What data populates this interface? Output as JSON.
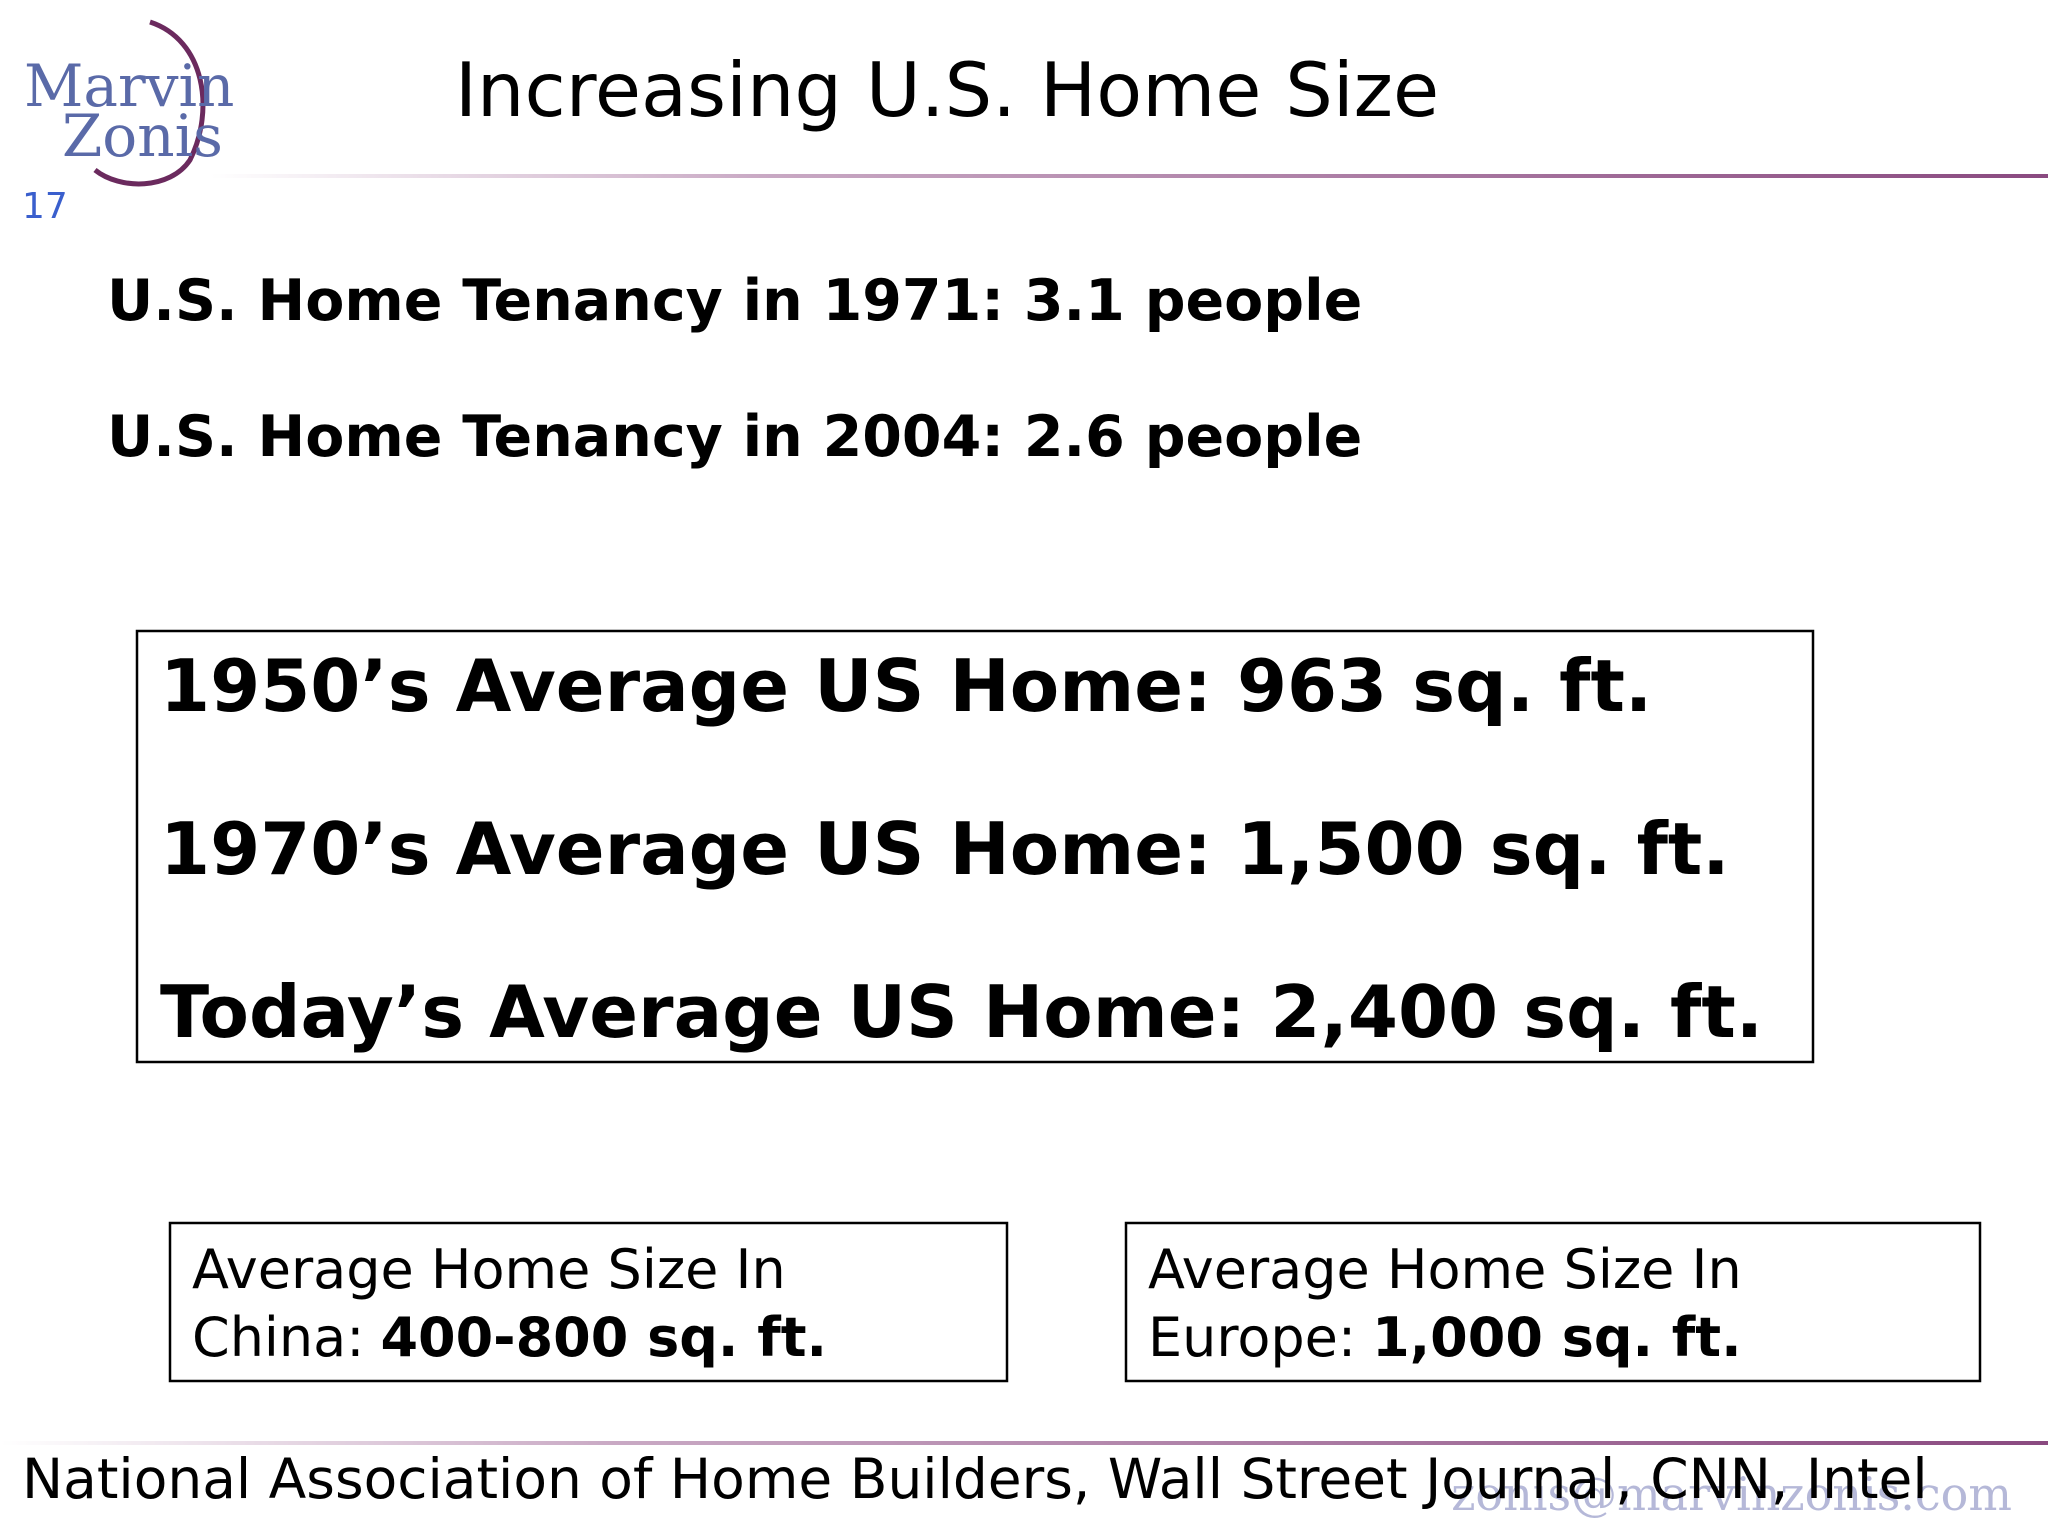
{
  "logo": {
    "line1": "Marvin",
    "line2": "Zonis"
  },
  "slide_number": "17",
  "title": "Increasing U.S. Home Size",
  "tenancy": [
    "U.S. Home Tenancy in 1971: 3.1 people",
    "U.S. Home Tenancy in 2004: 2.6 people"
  ],
  "home_sizes": [
    "1950’s Average US Home: 963 sq. ft.",
    "1970’s Average US Home: 1,500 sq. ft.",
    "Today’s Average US Home: 2,400 sq. ft."
  ],
  "comparisons": [
    {
      "line1": "Average Home Size In",
      "label": "China:",
      "value": "400-800 sq. ft."
    },
    {
      "line1": "Average Home Size In",
      "label": "Europe:",
      "value": "1,000 sq. ft."
    }
  ],
  "source": "National Association of Home Builders, Wall Street Journal, CNN, Intel",
  "watermark": "zonis@marvinzonis.com"
}
